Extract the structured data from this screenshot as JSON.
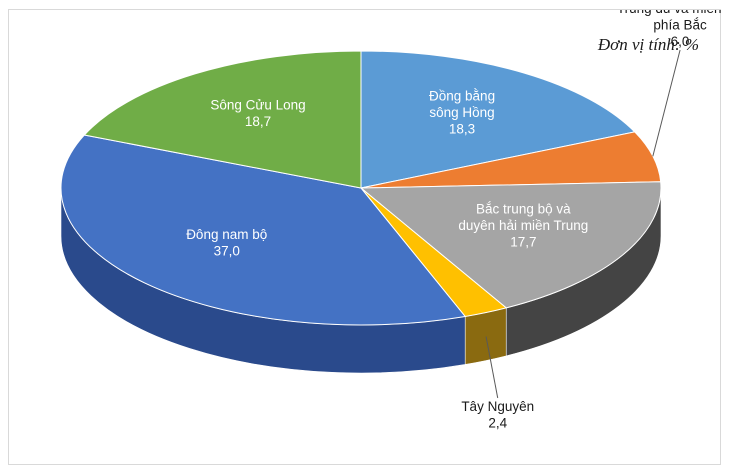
{
  "chart_data": {
    "type": "pie",
    "unit_note": "Đơn vị tính: %",
    "slices": [
      {
        "name_lines": [
          "Đồng bằng",
          "sông Hồng"
        ],
        "value": 18.3,
        "value_label": "18,3",
        "color": "#5b9bd5",
        "side": "#41719c"
      },
      {
        "name_lines": [
          "Trung du và miền núi",
          "phía Bắc"
        ],
        "value": 6.0,
        "value_label": "6,0",
        "color": "#ed7d31",
        "side": "#ae5a21"
      },
      {
        "name_lines": [
          "Bắc trung bộ và",
          "duyên hải miền Trung"
        ],
        "value": 17.7,
        "value_label": "17,7",
        "color": "#a5a5a5",
        "side": "#444444"
      },
      {
        "name_lines": [
          "Tây Nguyên"
        ],
        "value": 2.4,
        "value_label": "2,4",
        "color": "#ffc000",
        "side": "#8a6a10"
      },
      {
        "name_lines": [
          "Đông nam bộ"
        ],
        "value": 37.0,
        "value_label": "37,0",
        "color": "#4472c4",
        "side": "#2a4a8c"
      },
      {
        "name_lines": [
          "Sông Cửu Long"
        ],
        "value": 18.7,
        "value_label": "18,7",
        "color": "#70ad47",
        "side": "#4e7a30"
      }
    ]
  }
}
